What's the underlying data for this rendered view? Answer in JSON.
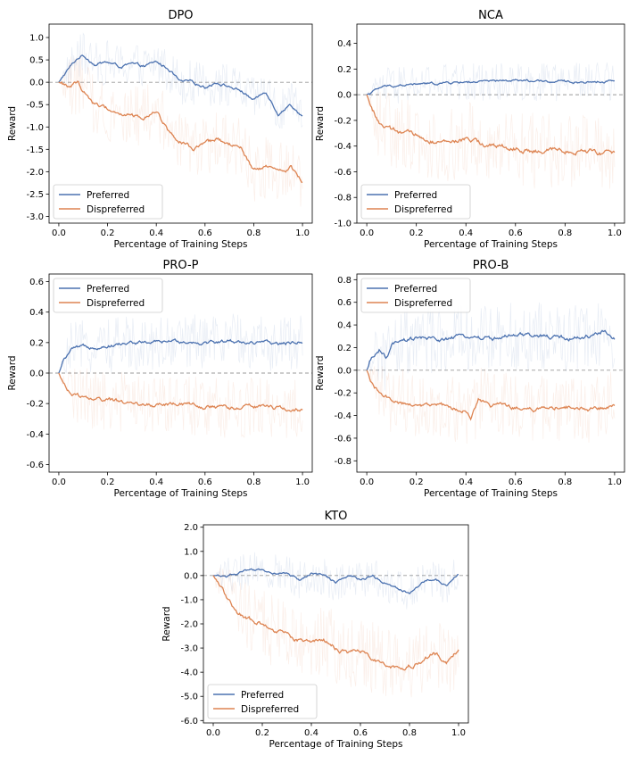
{
  "colors": {
    "preferred": "#4c72b0",
    "dispreferred": "#dd8452",
    "zero_line": "#999999",
    "frame": "#000000"
  },
  "chart_data": [
    {
      "type": "line",
      "title": "DPO",
      "xlabel": "Percentage of Training Steps",
      "ylabel": "Reward",
      "xlim": [
        -0.04,
        1.04
      ],
      "ylim": [
        -3.15,
        1.3
      ],
      "xticks": [
        0.0,
        0.2,
        0.4,
        0.6,
        0.8,
        1.0
      ],
      "xtick_labels": [
        "0.0",
        "0.2",
        "0.4",
        "0.6",
        "0.8",
        "1.0"
      ],
      "yticks": [
        1.0,
        0.5,
        0.0,
        -0.5,
        -1.0,
        -1.5,
        -2.0,
        -2.5,
        -3.0
      ],
      "ytick_labels": [
        "1.0",
        "0.5",
        "0.0",
        "-0.5",
        "-1.0",
        "-1.5",
        "-2.0",
        "-2.5",
        "-3.0"
      ],
      "zero_line": true,
      "legend": "lower-left",
      "series": [
        {
          "name": "Preferred",
          "x": [
            0,
            0.04,
            0.08,
            0.1,
            0.15,
            0.2,
            0.25,
            0.3,
            0.35,
            0.4,
            0.45,
            0.5,
            0.55,
            0.6,
            0.65,
            0.7,
            0.75,
            0.8,
            0.85,
            0.9,
            0.95,
            1.0
          ],
          "y": [
            0,
            0.3,
            0.55,
            0.6,
            0.4,
            0.45,
            0.35,
            0.4,
            0.35,
            0.45,
            0.3,
            0.0,
            0.0,
            -0.1,
            0.0,
            -0.1,
            -0.2,
            -0.4,
            -0.2,
            -0.7,
            -0.5,
            -0.75
          ],
          "band": 0.5
        },
        {
          "name": "Dispreferred",
          "x": [
            0,
            0.04,
            0.08,
            0.1,
            0.15,
            0.2,
            0.25,
            0.3,
            0.35,
            0.4,
            0.45,
            0.5,
            0.55,
            0.6,
            0.65,
            0.7,
            0.75,
            0.8,
            0.85,
            0.9,
            0.95,
            1.0
          ],
          "y": [
            0,
            -0.1,
            0.0,
            -0.2,
            -0.5,
            -0.6,
            -0.7,
            -0.75,
            -0.8,
            -0.6,
            -1.1,
            -1.3,
            -1.5,
            -1.4,
            -1.3,
            -1.4,
            -1.5,
            -2.0,
            -1.9,
            -2.0,
            -1.9,
            -2.2
          ],
          "band": 0.7
        }
      ]
    },
    {
      "type": "line",
      "title": "NCA",
      "xlabel": "Percentage of Training Steps",
      "ylabel": "Reward",
      "xlim": [
        -0.04,
        1.04
      ],
      "ylim": [
        -1.0,
        0.55
      ],
      "xticks": [
        0.0,
        0.2,
        0.4,
        0.6,
        0.8,
        1.0
      ],
      "xtick_labels": [
        "0.0",
        "0.2",
        "0.4",
        "0.6",
        "0.8",
        "1.0"
      ],
      "yticks": [
        0.4,
        0.2,
        0.0,
        -0.2,
        -0.4,
        -0.6,
        -0.8,
        -1.0
      ],
      "ytick_labels": [
        "0.4",
        "0.2",
        "0.0",
        "-0.2",
        "-0.4",
        "-0.6",
        "-0.8",
        "-1.0"
      ],
      "zero_line": true,
      "legend": "lower-left",
      "series": [
        {
          "name": "Preferred",
          "x": [
            0,
            0.03,
            0.06,
            0.1,
            0.2,
            0.3,
            0.4,
            0.5,
            0.6,
            0.7,
            0.8,
            0.9,
            1.0
          ],
          "y": [
            0,
            0.03,
            0.06,
            0.07,
            0.08,
            0.09,
            0.1,
            0.1,
            0.11,
            0.1,
            0.1,
            0.1,
            0.11
          ],
          "band": 0.15
        },
        {
          "name": "Dispreferred",
          "x": [
            0,
            0.02,
            0.05,
            0.1,
            0.2,
            0.3,
            0.4,
            0.5,
            0.6,
            0.7,
            0.8,
            0.9,
            1.0
          ],
          "y": [
            0,
            -0.1,
            -0.22,
            -0.28,
            -0.32,
            -0.38,
            -0.35,
            -0.4,
            -0.42,
            -0.45,
            -0.43,
            -0.44,
            -0.47
          ],
          "band": 0.3
        }
      ]
    },
    {
      "type": "line",
      "title": "PRO-P",
      "xlabel": "Percentage of Training Steps",
      "ylabel": "Reward",
      "xlim": [
        -0.04,
        1.04
      ],
      "ylim": [
        -0.65,
        0.65
      ],
      "xticks": [
        0.0,
        0.2,
        0.4,
        0.6,
        0.8,
        1.0
      ],
      "xtick_labels": [
        "0.0",
        "0.2",
        "0.4",
        "0.6",
        "0.8",
        "1.0"
      ],
      "yticks": [
        0.6,
        0.4,
        0.2,
        0.0,
        -0.2,
        -0.4,
        -0.6
      ],
      "ytick_labels": [
        "0.6",
        "0.4",
        "0.2",
        "0.0",
        "-0.2",
        "-0.4",
        "-0.6"
      ],
      "zero_line": true,
      "legend": "upper-left",
      "series": [
        {
          "name": "Preferred",
          "x": [
            0,
            0.02,
            0.05,
            0.1,
            0.2,
            0.3,
            0.4,
            0.5,
            0.6,
            0.7,
            0.8,
            0.9,
            1.0
          ],
          "y": [
            0,
            0.08,
            0.15,
            0.17,
            0.18,
            0.2,
            0.2,
            0.21,
            0.2,
            0.21,
            0.2,
            0.19,
            0.21
          ],
          "band": 0.18
        },
        {
          "name": "Dispreferred",
          "x": [
            0,
            0.02,
            0.05,
            0.1,
            0.2,
            0.3,
            0.4,
            0.5,
            0.6,
            0.7,
            0.8,
            0.9,
            1.0
          ],
          "y": [
            0,
            -0.08,
            -0.13,
            -0.16,
            -0.18,
            -0.2,
            -0.21,
            -0.2,
            -0.22,
            -0.23,
            -0.22,
            -0.23,
            -0.24
          ],
          "band": 0.2
        }
      ]
    },
    {
      "type": "line",
      "title": "PRO-B",
      "xlabel": "Percentage of Training Steps",
      "ylabel": "Reward",
      "xlim": [
        -0.04,
        1.04
      ],
      "ylim": [
        -0.9,
        0.85
      ],
      "xticks": [
        0.0,
        0.2,
        0.4,
        0.6,
        0.8,
        1.0
      ],
      "xtick_labels": [
        "0.0",
        "0.2",
        "0.4",
        "0.6",
        "0.8",
        "1.0"
      ],
      "yticks": [
        0.8,
        0.6,
        0.4,
        0.2,
        0.0,
        -0.2,
        -0.4,
        -0.6,
        -0.8
      ],
      "ytick_labels": [
        "0.8",
        "0.6",
        "0.4",
        "0.2",
        "0.0",
        "-0.2",
        "-0.4",
        "-0.6",
        "-0.8"
      ],
      "zero_line": true,
      "legend": "upper-left",
      "series": [
        {
          "name": "Preferred",
          "x": [
            0,
            0.02,
            0.05,
            0.08,
            0.1,
            0.2,
            0.3,
            0.4,
            0.5,
            0.6,
            0.7,
            0.8,
            0.9,
            0.95,
            1.0
          ],
          "y": [
            0,
            0.1,
            0.18,
            0.1,
            0.22,
            0.28,
            0.27,
            0.3,
            0.28,
            0.3,
            0.3,
            0.28,
            0.3,
            0.35,
            0.28
          ],
          "band": 0.3
        },
        {
          "name": "Dispreferred",
          "x": [
            0,
            0.02,
            0.05,
            0.1,
            0.2,
            0.3,
            0.4,
            0.42,
            0.45,
            0.5,
            0.6,
            0.7,
            0.8,
            0.9,
            1.0
          ],
          "y": [
            0,
            -0.1,
            -0.2,
            -0.28,
            -0.3,
            -0.32,
            -0.36,
            -0.45,
            -0.25,
            -0.3,
            -0.33,
            -0.35,
            -0.32,
            -0.36,
            -0.3
          ],
          "band": 0.3
        }
      ]
    },
    {
      "type": "line",
      "title": "KTO",
      "xlabel": "Percentage of Training Steps",
      "ylabel": "Reward",
      "xlim": [
        -0.04,
        1.04
      ],
      "ylim": [
        -6.1,
        2.1
      ],
      "xticks": [
        0.0,
        0.2,
        0.4,
        0.6,
        0.8,
        1.0
      ],
      "xtick_labels": [
        "0.0",
        "0.2",
        "0.4",
        "0.6",
        "0.8",
        "1.0"
      ],
      "yticks": [
        2.0,
        1.0,
        0.0,
        -1.0,
        -2.0,
        -3.0,
        -4.0,
        -5.0,
        -6.0
      ],
      "ytick_labels": [
        "2.0",
        "1.0",
        "0.0",
        "-1.0",
        "-2.0",
        "-3.0",
        "-4.0",
        "-5.0",
        "-6.0"
      ],
      "zero_line": true,
      "legend": "lower-left",
      "series": [
        {
          "name": "Preferred",
          "x": [
            0,
            0.05,
            0.1,
            0.15,
            0.2,
            0.25,
            0.3,
            0.35,
            0.4,
            0.45,
            0.5,
            0.55,
            0.6,
            0.65,
            0.7,
            0.75,
            0.8,
            0.85,
            0.9,
            0.95,
            1.0
          ],
          "y": [
            0,
            0.0,
            0.1,
            0.2,
            0.2,
            0.1,
            0.1,
            -0.2,
            0.1,
            0.0,
            -0.3,
            0.0,
            -0.2,
            0.0,
            -0.3,
            -0.5,
            -0.7,
            -0.3,
            -0.1,
            -0.4,
            0.1
          ],
          "band": 0.8
        },
        {
          "name": "Dispreferred",
          "x": [
            0,
            0.03,
            0.06,
            0.1,
            0.15,
            0.2,
            0.25,
            0.3,
            0.35,
            0.4,
            0.45,
            0.5,
            0.55,
            0.6,
            0.65,
            0.7,
            0.75,
            0.8,
            0.85,
            0.9,
            0.95,
            1.0
          ],
          "y": [
            0,
            -0.5,
            -1.0,
            -1.5,
            -1.8,
            -2.0,
            -2.3,
            -2.5,
            -2.7,
            -2.8,
            -2.6,
            -3.0,
            -3.2,
            -3.1,
            -3.4,
            -3.6,
            -3.9,
            -3.7,
            -3.5,
            -3.2,
            -3.6,
            -3.1
          ],
          "band": 1.5
        }
      ]
    }
  ]
}
